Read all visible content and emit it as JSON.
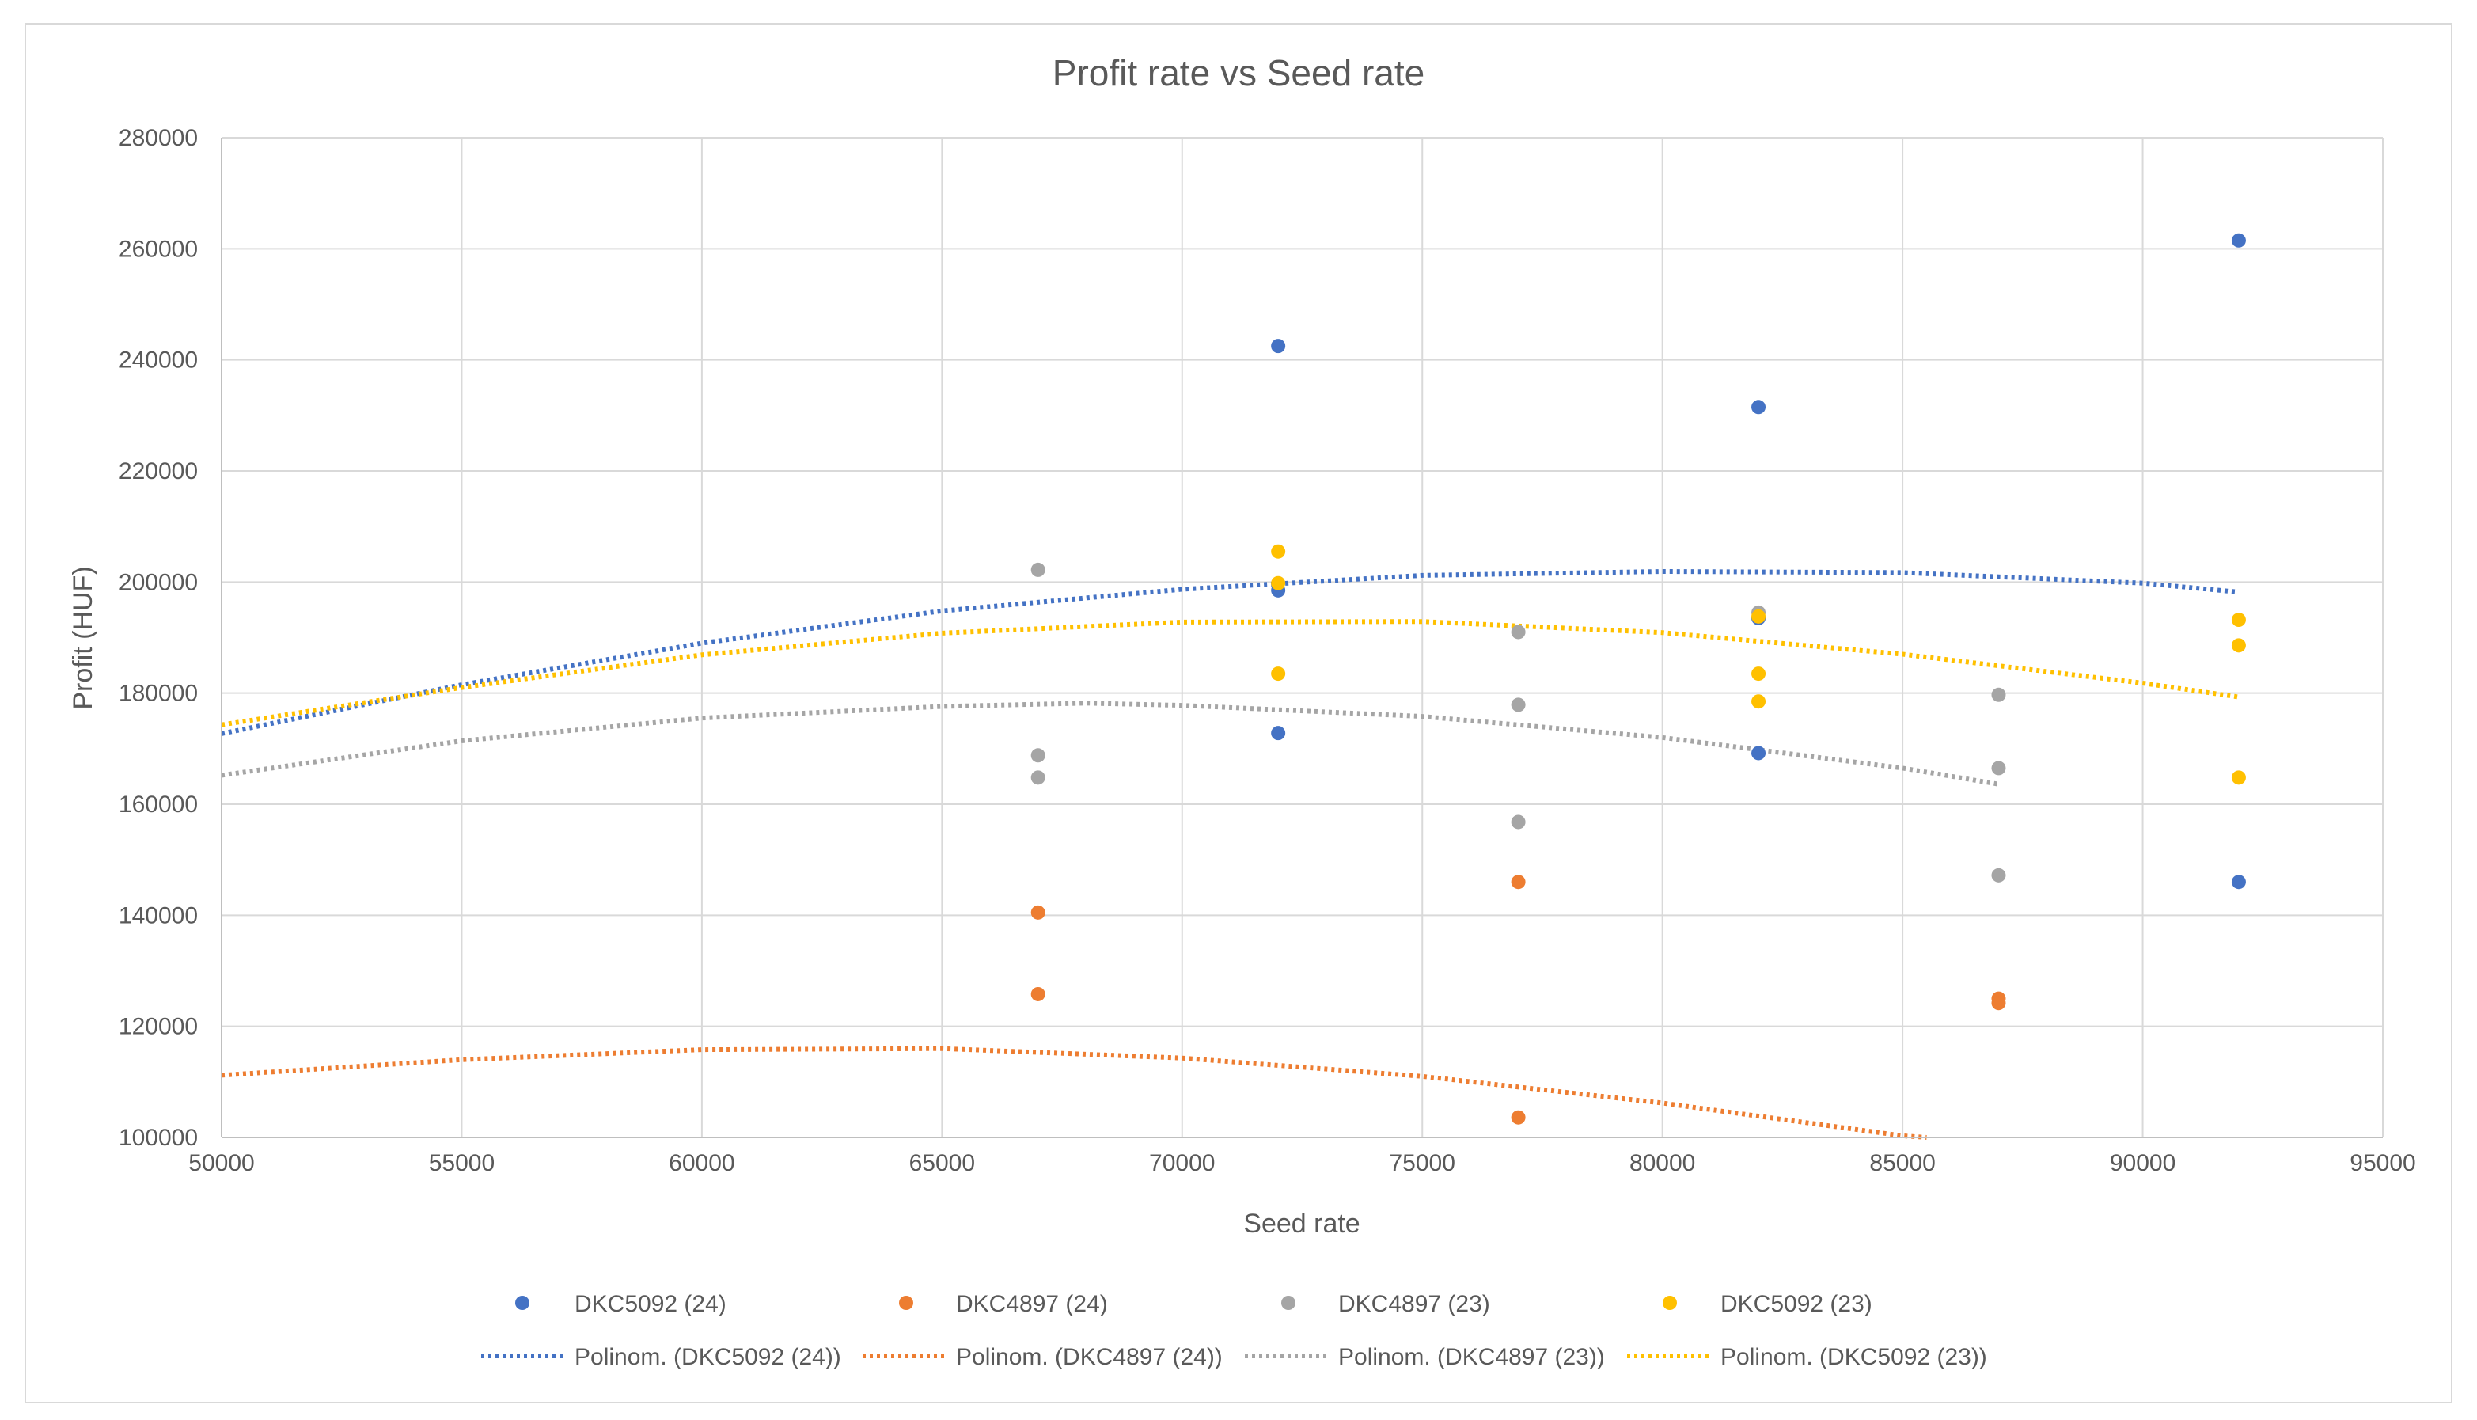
{
  "chart_data": {
    "type": "scatter",
    "title": "Profit rate vs Seed rate",
    "xlabel": "Seed rate",
    "ylabel": "Profit (HUF)",
    "xlim": [
      50000,
      95000
    ],
    "ylim": [
      100000,
      280000
    ],
    "x_ticks": [
      "50000",
      "55000",
      "60000",
      "65000",
      "70000",
      "75000",
      "80000",
      "85000",
      "90000",
      "95000"
    ],
    "y_ticks": [
      "100000",
      "120000",
      "140000",
      "160000",
      "180000",
      "200000",
      "220000",
      "240000",
      "260000",
      "280000"
    ],
    "grid": true,
    "legend_position": "bottom",
    "series": [
      {
        "name": "DKC5092 (24)",
        "color": "#4472C4",
        "points": [
          [
            72000,
            242500
          ],
          [
            72000,
            198500
          ],
          [
            72000,
            172800
          ],
          [
            82000,
            231500
          ],
          [
            82000,
            193500
          ],
          [
            82000,
            169200
          ],
          [
            92000,
            261500
          ],
          [
            92000,
            146000
          ]
        ],
        "trend_name": "Polinom. (DKC5092 (24))",
        "trend_range": [
          50000,
          92000
        ]
      },
      {
        "name": "DKC4897 (24)",
        "color": "#ED7D31",
        "points": [
          [
            67000,
            140500
          ],
          [
            67000,
            125800
          ],
          [
            77000,
            146000
          ],
          [
            77000,
            103600
          ],
          [
            87000,
            125000
          ],
          [
            87000,
            124200
          ]
        ],
        "trend_name": "Polinom. (DKC4897 (24))",
        "trend_range": [
          50000,
          85500
        ]
      },
      {
        "name": "DKC4897 (23)",
        "color": "#A5A5A5",
        "points": [
          [
            67000,
            202200
          ],
          [
            67000,
            168800
          ],
          [
            67000,
            164800
          ],
          [
            77000,
            191000
          ],
          [
            77000,
            177900
          ],
          [
            77000,
            156800
          ],
          [
            82000,
            194500
          ],
          [
            87000,
            179700
          ],
          [
            87000,
            166500
          ],
          [
            87000,
            147200
          ]
        ],
        "trend_name": "Polinom. (DKC4897 (23))",
        "trend_range": [
          50000,
          87000
        ]
      },
      {
        "name": "DKC5092 (23)",
        "color": "#FFC000",
        "points": [
          [
            72000,
            205500
          ],
          [
            72000,
            199800
          ],
          [
            72000,
            183500
          ],
          [
            82000,
            193800
          ],
          [
            82000,
            183500
          ],
          [
            82000,
            178500
          ],
          [
            92000,
            193200
          ],
          [
            92000,
            188600
          ],
          [
            92000,
            164800
          ]
        ],
        "trend_name": "Polinom. (DKC5092 (23))",
        "trend_range": [
          50000,
          92000
        ]
      }
    ],
    "trendlines": [
      {
        "series": "DKC5092 (24)",
        "points": [
          [
            50000,
            172700
          ],
          [
            55000,
            181500
          ],
          [
            60000,
            189000
          ],
          [
            65000,
            194800
          ],
          [
            70000,
            198700
          ],
          [
            75000,
            201200
          ],
          [
            80000,
            201900
          ],
          [
            85000,
            201700
          ],
          [
            90000,
            199800
          ],
          [
            92000,
            198200
          ]
        ]
      },
      {
        "series": "DKC4897 (24)",
        "points": [
          [
            50000,
            111200
          ],
          [
            55000,
            114000
          ],
          [
            60000,
            115800
          ],
          [
            65000,
            116000
          ],
          [
            70000,
            114300
          ],
          [
            75000,
            111000
          ],
          [
            80000,
            106200
          ],
          [
            85000,
            100300
          ],
          [
            85500,
            100000
          ]
        ]
      },
      {
        "series": "DKC4897 (23)",
        "points": [
          [
            50000,
            165200
          ],
          [
            55000,
            171400
          ],
          [
            60000,
            175500
          ],
          [
            65000,
            177600
          ],
          [
            68000,
            178200
          ],
          [
            70000,
            177800
          ],
          [
            75000,
            175800
          ],
          [
            80000,
            172000
          ],
          [
            85000,
            166500
          ],
          [
            87000,
            163600
          ]
        ]
      },
      {
        "series": "DKC5092 (23)",
        "points": [
          [
            50000,
            174300
          ],
          [
            55000,
            181000
          ],
          [
            60000,
            186900
          ],
          [
            65000,
            190800
          ],
          [
            70000,
            192800
          ],
          [
            75000,
            192900
          ],
          [
            80000,
            190900
          ],
          [
            85000,
            187000
          ],
          [
            90000,
            181800
          ],
          [
            92000,
            179300
          ]
        ]
      }
    ]
  }
}
